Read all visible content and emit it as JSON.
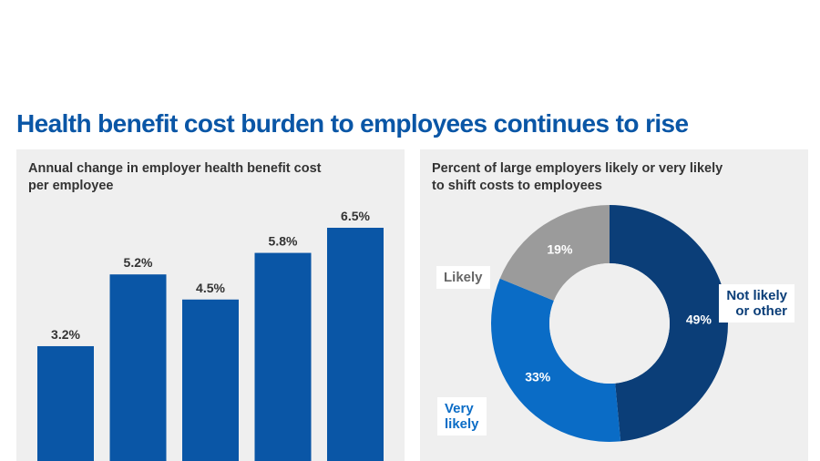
{
  "page": {
    "title": "Health benefit cost burden to employees continues to rise"
  },
  "left_panel": {
    "subtitle": "Annual change in employer health benefit cost per employee"
  },
  "right_panel": {
    "subtitle": "Percent of large employers likely or very likely to shift costs to employees"
  },
  "colors": {
    "title": "#0a56a6",
    "bar": "#0a56a6",
    "navy": "#0b3e78",
    "blue": "#0a6cc6",
    "gray": "#9b9b9b",
    "panel_bg": "#efefef"
  },
  "chart_data": [
    {
      "type": "bar",
      "title": "Annual change in employer health benefit cost per employee",
      "categories": [
        "",
        "",
        "",
        "",
        ""
      ],
      "values": [
        3.2,
        5.2,
        4.5,
        5.8,
        6.5
      ],
      "data_labels": [
        "3.2%",
        "5.2%",
        "4.5%",
        "5.8%",
        "6.5%"
      ],
      "ylim": [
        0,
        6.5
      ],
      "grid": false
    },
    {
      "type": "pie",
      "variant": "donut",
      "title": "Percent of large employers likely or very likely to shift costs to employees",
      "slices": [
        {
          "name": "Not likely or other",
          "value": 49,
          "label": "49%",
          "color": "#0b3e78"
        },
        {
          "name": "Very likely",
          "value": 33,
          "label": "33%",
          "color": "#0a6cc6"
        },
        {
          "name": "Likely",
          "value": 19,
          "label": "19%",
          "color": "#9b9b9b"
        }
      ],
      "category_labels": {
        "not_likely_line1": "Not likely",
        "not_likely_line2": "or other",
        "very_likely_line1": "Very",
        "very_likely_line2": "likely",
        "likely": "Likely"
      }
    }
  ]
}
